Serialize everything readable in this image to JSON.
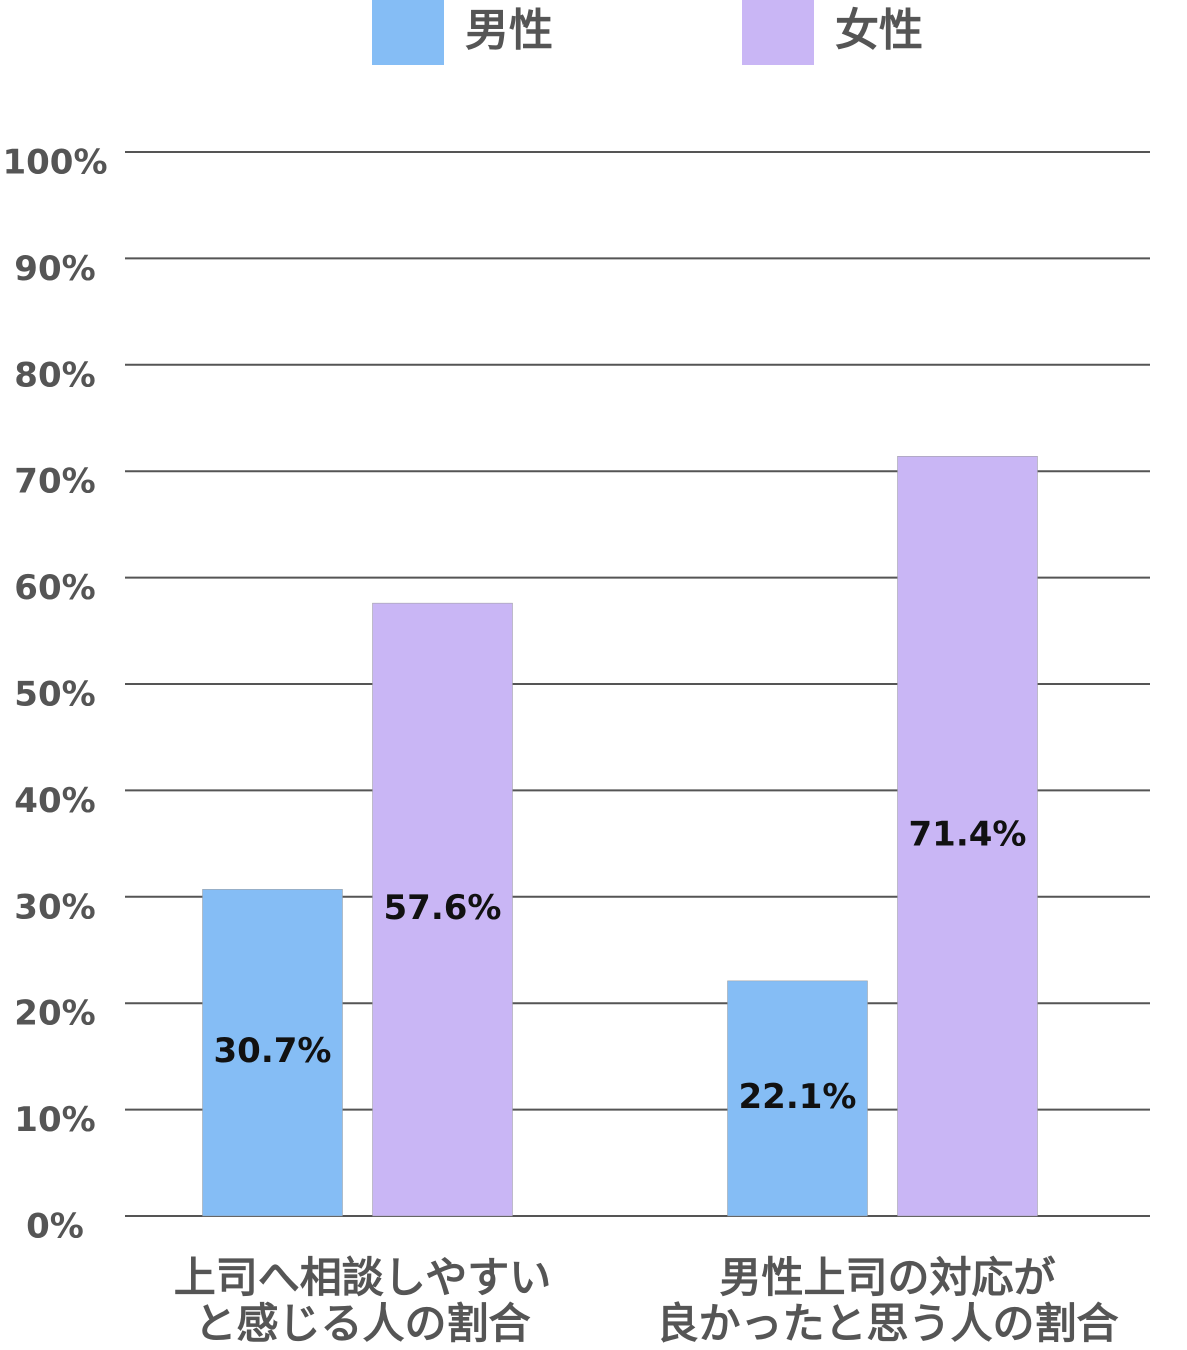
{
  "chart_data": {
    "type": "bar",
    "categories": [
      "上司へ相談しやすい\nと感じる人の割合",
      "男性上司の対応が\n良かったと思う人の割合"
    ],
    "series": [
      {
        "name": "男性",
        "color": "#85bdf5",
        "values": [
          30.7,
          22.1
        ],
        "value_labels": [
          "30.7%",
          "22.1%"
        ]
      },
      {
        "name": "女性",
        "color": "#c9b6f5",
        "values": [
          57.6,
          71.4
        ],
        "value_labels": [
          "57.6%",
          "71.4%"
        ]
      }
    ],
    "ylim": [
      0,
      100
    ],
    "yticks": [
      {
        "value": 0,
        "label": "0%"
      },
      {
        "value": 10,
        "label": "10%"
      },
      {
        "value": 20,
        "label": "20%"
      },
      {
        "value": 30,
        "label": "30%"
      },
      {
        "value": 40,
        "label": "40%"
      },
      {
        "value": 50,
        "label": "50%"
      },
      {
        "value": 60,
        "label": "60%"
      },
      {
        "value": 70,
        "label": "70%"
      },
      {
        "value": 80,
        "label": "80%"
      },
      {
        "value": 90,
        "label": "90%"
      },
      {
        "value": 100,
        "label": "100%"
      }
    ],
    "grid": true,
    "legend": "top"
  }
}
